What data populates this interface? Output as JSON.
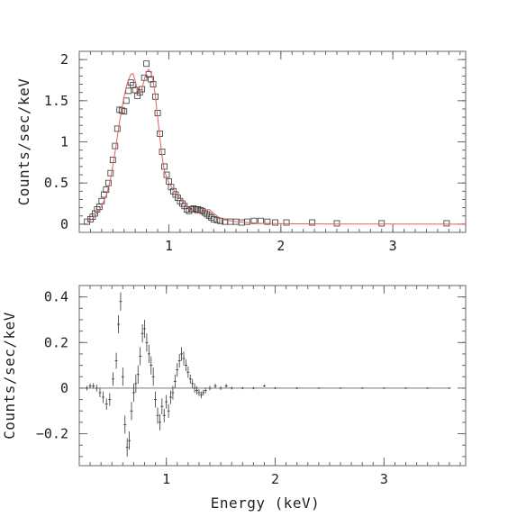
{
  "colors": {
    "data": "#333333",
    "model": "#e06060",
    "axis": "#666666",
    "zero_line": "#666666"
  },
  "chart_data": [
    {
      "type": "scatter",
      "ylabel": "Counts/sec/keV",
      "xlabel": "",
      "xlim": [
        0.2,
        3.65
      ],
      "ylim": [
        -0.1,
        2.1
      ],
      "x_scale": "linear",
      "x_ticks": [
        {
          "value": 1,
          "label": "1"
        },
        {
          "value": 2,
          "label": "2"
        },
        {
          "value": 3,
          "label": "3"
        }
      ],
      "y_ticks": [
        {
          "value": 0,
          "label": "0"
        },
        {
          "value": 0.5,
          "label": "0.5"
        },
        {
          "value": 1,
          "label": "1"
        },
        {
          "value": 1.5,
          "label": "1.5"
        },
        {
          "value": 2,
          "label": "2"
        }
      ],
      "series": [
        {
          "style": "square-markers",
          "color": "#333333",
          "x": [
            0.27,
            0.3,
            0.32,
            0.34,
            0.36,
            0.38,
            0.4,
            0.42,
            0.44,
            0.46,
            0.48,
            0.5,
            0.52,
            0.54,
            0.56,
            0.58,
            0.6,
            0.62,
            0.64,
            0.66,
            0.68,
            0.7,
            0.72,
            0.74,
            0.76,
            0.78,
            0.8,
            0.82,
            0.84,
            0.86,
            0.88,
            0.9,
            0.92,
            0.94,
            0.96,
            0.98,
            1.0,
            1.02,
            1.04,
            1.06,
            1.08,
            1.1,
            1.12,
            1.14,
            1.16,
            1.18,
            1.2,
            1.22,
            1.24,
            1.26,
            1.28,
            1.3,
            1.32,
            1.34,
            1.36,
            1.38,
            1.4,
            1.43,
            1.46,
            1.5,
            1.55,
            1.6,
            1.65,
            1.7,
            1.76,
            1.82,
            1.88,
            1.95,
            2.05,
            2.28,
            2.5,
            2.9,
            3.48
          ],
          "y": [
            0.03,
            0.06,
            0.09,
            0.13,
            0.18,
            0.21,
            0.28,
            0.36,
            0.42,
            0.5,
            0.62,
            0.78,
            0.95,
            1.16,
            1.39,
            1.38,
            1.37,
            1.5,
            1.62,
            1.72,
            1.69,
            1.63,
            1.56,
            1.6,
            1.64,
            1.78,
            1.95,
            1.82,
            1.76,
            1.7,
            1.55,
            1.35,
            1.1,
            0.88,
            0.7,
            0.6,
            0.52,
            0.45,
            0.4,
            0.36,
            0.32,
            0.28,
            0.25,
            0.22,
            0.18,
            0.16,
            0.18,
            0.19,
            0.18,
            0.18,
            0.17,
            0.16,
            0.14,
            0.12,
            0.1,
            0.08,
            0.06,
            0.05,
            0.04,
            0.03,
            0.03,
            0.03,
            0.02,
            0.03,
            0.04,
            0.04,
            0.03,
            0.02,
            0.02,
            0.02,
            0.01,
            0.01,
            0.01
          ]
        },
        {
          "style": "line",
          "color": "#e06060",
          "x": [
            0.27,
            0.32,
            0.36,
            0.4,
            0.44,
            0.48,
            0.52,
            0.56,
            0.6,
            0.63,
            0.66,
            0.68,
            0.7,
            0.72,
            0.74,
            0.76,
            0.78,
            0.8,
            0.82,
            0.84,
            0.86,
            0.88,
            0.9,
            0.92,
            0.94,
            0.96,
            1.0,
            1.04,
            1.08,
            1.12,
            1.16,
            1.2,
            1.24,
            1.28,
            1.32,
            1.36,
            1.4,
            1.45,
            1.5,
            1.6,
            1.7,
            1.8,
            2.0,
            2.5,
            3.0,
            3.65
          ],
          "y": [
            0.02,
            0.07,
            0.14,
            0.22,
            0.34,
            0.55,
            0.88,
            1.25,
            1.55,
            1.72,
            1.82,
            1.83,
            1.74,
            1.62,
            1.6,
            1.65,
            1.75,
            1.85,
            1.88,
            1.84,
            1.74,
            1.55,
            1.3,
            1.05,
            0.82,
            0.65,
            0.5,
            0.42,
            0.35,
            0.28,
            0.22,
            0.16,
            0.13,
            0.14,
            0.16,
            0.18,
            0.13,
            0.08,
            0.05,
            0.03,
            0.02,
            0.01,
            0.005,
            0.002,
            0.001,
            0.0
          ]
        }
      ]
    },
    {
      "type": "scatter",
      "ylabel": "Counts/sec/keV",
      "xlabel": "Energy (keV)",
      "xlim": [
        0.2,
        3.75
      ],
      "ylim": [
        -0.34,
        0.45
      ],
      "x_scale": "linear",
      "x_ticks": [
        {
          "value": 1,
          "label": "1"
        },
        {
          "value": 2,
          "label": "2"
        },
        {
          "value": 3,
          "label": "3"
        }
      ],
      "y_ticks": [
        {
          "value": -0.2,
          "label": "−0.2"
        },
        {
          "value": 0,
          "label": "0"
        },
        {
          "value": 0.2,
          "label": "0.2"
        },
        {
          "value": 0.4,
          "label": "0.4"
        }
      ],
      "zero_line": true,
      "series": [
        {
          "style": "error-bars",
          "color": "#333333",
          "x": [
            0.27,
            0.3,
            0.33,
            0.36,
            0.39,
            0.42,
            0.45,
            0.48,
            0.51,
            0.54,
            0.56,
            0.58,
            0.6,
            0.62,
            0.64,
            0.66,
            0.68,
            0.7,
            0.72,
            0.74,
            0.76,
            0.78,
            0.8,
            0.82,
            0.84,
            0.86,
            0.88,
            0.9,
            0.92,
            0.94,
            0.96,
            0.98,
            1.0,
            1.02,
            1.04,
            1.06,
            1.08,
            1.1,
            1.12,
            1.14,
            1.16,
            1.18,
            1.2,
            1.22,
            1.24,
            1.26,
            1.28,
            1.3,
            1.32,
            1.34,
            1.36,
            1.4,
            1.45,
            1.5,
            1.55,
            1.6,
            1.7,
            1.8,
            1.9,
            2.0,
            2.2,
            2.4,
            2.6,
            2.8,
            3.0,
            3.2,
            3.4,
            3.6
          ],
          "y": [
            0.0,
            0.01,
            0.01,
            0.0,
            -0.02,
            -0.04,
            -0.07,
            -0.05,
            0.04,
            0.12,
            0.28,
            0.38,
            0.05,
            -0.16,
            -0.26,
            -0.23,
            -0.1,
            -0.02,
            0.02,
            0.06,
            0.14,
            0.24,
            0.26,
            0.2,
            0.15,
            0.1,
            0.05,
            -0.05,
            -0.12,
            -0.15,
            -0.08,
            -0.12,
            -0.06,
            -0.1,
            -0.04,
            -0.02,
            0.03,
            0.08,
            0.12,
            0.15,
            0.13,
            0.1,
            0.07,
            0.04,
            0.02,
            0.0,
            -0.01,
            -0.02,
            -0.03,
            -0.02,
            -0.01,
            0.0,
            0.01,
            0.0,
            0.01,
            0.0,
            0.0,
            0.0,
            0.01,
            0.0,
            0.0,
            0.0,
            0.0,
            0.0,
            0.0,
            0.0,
            0.0,
            0.0
          ],
          "err": [
            0.01,
            0.01,
            0.012,
            0.015,
            0.02,
            0.025,
            0.025,
            0.028,
            0.03,
            0.035,
            0.04,
            0.04,
            0.04,
            0.04,
            0.04,
            0.04,
            0.04,
            0.04,
            0.04,
            0.04,
            0.04,
            0.04,
            0.04,
            0.04,
            0.04,
            0.04,
            0.04,
            0.035,
            0.035,
            0.035,
            0.035,
            0.03,
            0.03,
            0.03,
            0.03,
            0.03,
            0.03,
            0.03,
            0.03,
            0.03,
            0.03,
            0.025,
            0.025,
            0.02,
            0.02,
            0.02,
            0.018,
            0.015,
            0.015,
            0.012,
            0.012,
            0.01,
            0.01,
            0.008,
            0.008,
            0.006,
            0.005,
            0.005,
            0.005,
            0.004,
            0.004,
            0.003,
            0.003,
            0.003,
            0.003,
            0.003,
            0.003,
            0.003
          ]
        }
      ]
    }
  ]
}
